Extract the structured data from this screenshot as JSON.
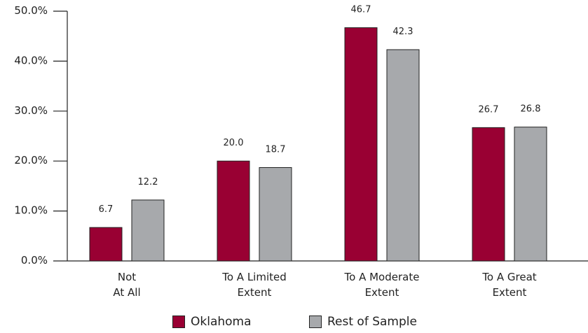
{
  "chart_data": {
    "type": "bar",
    "categories": [
      [
        "Not",
        "At All"
      ],
      [
        "To A Limited",
        "Extent"
      ],
      [
        "To A Moderate",
        "Extent"
      ],
      [
        "To A Great",
        "Extent"
      ]
    ],
    "series": [
      {
        "name": "Oklahoma",
        "values": [
          6.7,
          20.0,
          46.7,
          26.7
        ],
        "labels": [
          "6.7",
          "20.0",
          "46.7",
          "26.7"
        ],
        "color": "#990033"
      },
      {
        "name": "Rest of Sample",
        "values": [
          12.2,
          18.7,
          42.3,
          26.8
        ],
        "labels": [
          "12.2",
          "18.7",
          "42.3",
          "26.8"
        ],
        "color": "#a7a9ac"
      }
    ],
    "yticks": [
      0,
      10,
      20,
      30,
      40,
      50
    ],
    "ytick_labels": [
      "0.0%",
      "10.0%",
      "20.0%",
      "30.0%",
      "40.0%",
      "50.0%"
    ],
    "ylim": [
      0,
      50
    ],
    "grid": false,
    "legend_position": "bottom-center",
    "bar_outline_color": "#222222"
  }
}
